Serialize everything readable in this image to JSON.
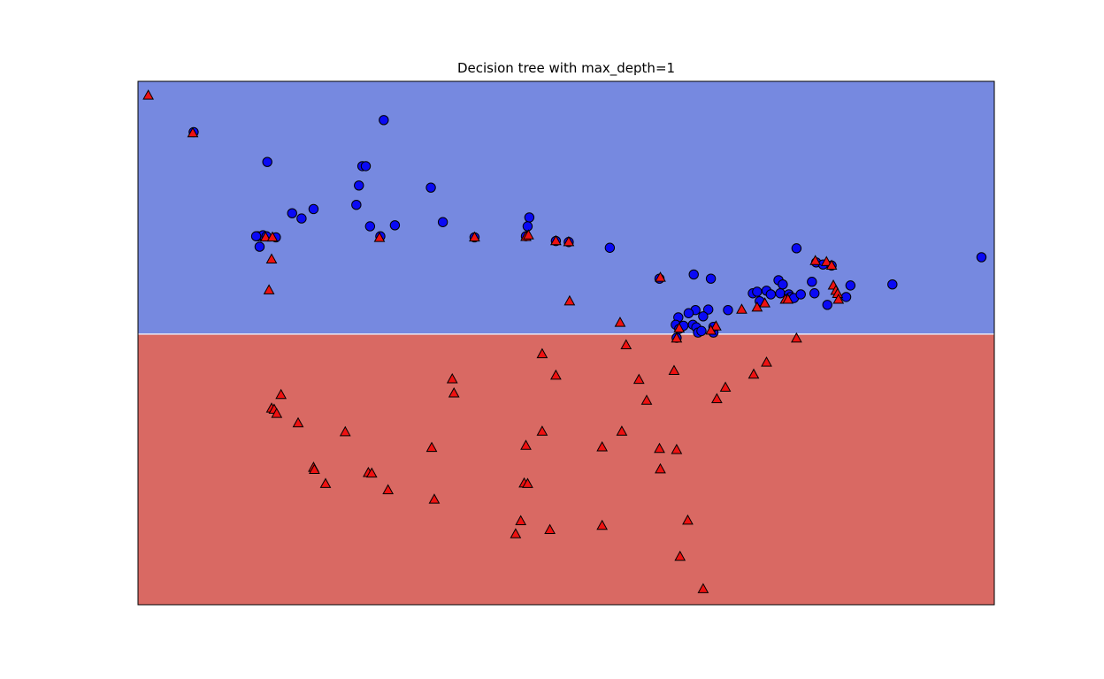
{
  "chart_data": {
    "type": "scatter",
    "title": "Decision tree with max_depth=1",
    "xlabel": "",
    "ylabel": "",
    "xlim": [
      0,
      100
    ],
    "ylim": [
      0,
      100
    ],
    "xticks": false,
    "yticks": false,
    "grid": false,
    "legend": "none",
    "regions": [
      {
        "class": "blue",
        "y_range": [
          51.7,
          100
        ],
        "color": "#7689e0"
      },
      {
        "class": "red",
        "y_range": [
          0,
          51.7
        ],
        "color": "#d96963"
      }
    ],
    "decision_boundary_y": 51.7,
    "series": [
      {
        "marker": "circle",
        "color": "#0a0af5",
        "points": [
          [
            6.5,
            90.3
          ],
          [
            28.7,
            92.6
          ],
          [
            15.1,
            84.6
          ],
          [
            26.2,
            83.8
          ],
          [
            26.6,
            83.8
          ],
          [
            25.8,
            80.1
          ],
          [
            34.2,
            79.7
          ],
          [
            25.5,
            76.4
          ],
          [
            20.5,
            75.6
          ],
          [
            18.0,
            74.8
          ],
          [
            19.1,
            73.8
          ],
          [
            30.0,
            72.5
          ],
          [
            35.6,
            73.1
          ],
          [
            27.1,
            72.3
          ],
          [
            45.7,
            74.0
          ],
          [
            14.0,
            70.4
          ],
          [
            14.6,
            70.6
          ],
          [
            15.0,
            70.4
          ],
          [
            16.1,
            70.2
          ],
          [
            13.8,
            70.4
          ],
          [
            14.2,
            68.4
          ],
          [
            28.3,
            70.4
          ],
          [
            39.3,
            70.2
          ],
          [
            45.3,
            70.4
          ],
          [
            45.5,
            72.3
          ],
          [
            48.8,
            69.5
          ],
          [
            50.3,
            69.3
          ],
          [
            55.1,
            68.2
          ],
          [
            76.9,
            68.1
          ],
          [
            79.2,
            65.4
          ],
          [
            80.0,
            65.0
          ],
          [
            81.0,
            64.8
          ],
          [
            83.2,
            61.0
          ],
          [
            88.1,
            61.2
          ],
          [
            98.5,
            66.4
          ],
          [
            60.9,
            62.3
          ],
          [
            64.9,
            63.1
          ],
          [
            66.9,
            62.3
          ],
          [
            71.8,
            59.5
          ],
          [
            72.3,
            59.8
          ],
          [
            73.4,
            60.0
          ],
          [
            73.9,
            59.3
          ],
          [
            74.8,
            62.0
          ],
          [
            75.3,
            61.2
          ],
          [
            75.0,
            59.5
          ],
          [
            76.0,
            59.3
          ],
          [
            76.2,
            58.8
          ],
          [
            76.6,
            58.6
          ],
          [
            78.7,
            61.7
          ],
          [
            77.4,
            59.3
          ],
          [
            79.0,
            59.5
          ],
          [
            80.5,
            57.3
          ],
          [
            82.7,
            58.8
          ],
          [
            68.9,
            56.3
          ],
          [
            66.6,
            56.4
          ],
          [
            63.1,
            54.9
          ],
          [
            65.1,
            56.3
          ],
          [
            64.3,
            55.7
          ],
          [
            66.0,
            55.1
          ],
          [
            62.8,
            53.5
          ],
          [
            63.2,
            52.7
          ],
          [
            63.7,
            53.3
          ],
          [
            64.8,
            53.5
          ],
          [
            65.2,
            53.0
          ],
          [
            65.4,
            52.0
          ],
          [
            65.8,
            52.3
          ],
          [
            67.2,
            52.0
          ],
          [
            67.2,
            53.1
          ],
          [
            72.6,
            58.0
          ],
          [
            62.9,
            51.0
          ]
        ]
      },
      {
        "marker": "triangle",
        "color": "#ee1111",
        "points": [
          [
            1.2,
            97.3
          ],
          [
            6.4,
            90.1
          ],
          [
            14.9,
            70.2
          ],
          [
            15.7,
            70.2
          ],
          [
            15.6,
            66.0
          ],
          [
            15.3,
            60.1
          ],
          [
            28.2,
            70.1
          ],
          [
            39.3,
            70.2
          ],
          [
            45.3,
            70.3
          ],
          [
            45.6,
            70.6
          ],
          [
            48.8,
            69.5
          ],
          [
            50.3,
            69.3
          ],
          [
            50.4,
            58.0
          ],
          [
            61.0,
            62.5
          ],
          [
            79.1,
            65.7
          ],
          [
            80.4,
            65.5
          ],
          [
            81.0,
            64.8
          ],
          [
            81.2,
            61.0
          ],
          [
            81.5,
            60.0
          ],
          [
            81.7,
            59.4
          ],
          [
            81.8,
            58.3
          ],
          [
            75.6,
            58.3
          ],
          [
            75.9,
            58.3
          ],
          [
            73.2,
            57.6
          ],
          [
            72.3,
            56.8
          ],
          [
            70.5,
            56.4
          ],
          [
            67.5,
            53.2
          ],
          [
            66.9,
            52.4
          ],
          [
            63.2,
            52.8
          ],
          [
            62.9,
            50.9
          ],
          [
            56.3,
            53.9
          ],
          [
            57.0,
            49.6
          ],
          [
            76.9,
            50.9
          ],
          [
            47.2,
            47.9
          ],
          [
            73.4,
            46.3
          ],
          [
            71.9,
            44.0
          ],
          [
            68.6,
            41.5
          ],
          [
            67.6,
            39.3
          ],
          [
            36.7,
            43.1
          ],
          [
            36.9,
            40.4
          ],
          [
            16.7,
            40.1
          ],
          [
            15.6,
            37.5
          ],
          [
            15.9,
            37.3
          ],
          [
            16.2,
            36.5
          ],
          [
            18.7,
            34.7
          ],
          [
            24.2,
            33.0
          ],
          [
            48.8,
            43.8
          ],
          [
            58.5,
            43.0
          ],
          [
            62.6,
            44.7
          ],
          [
            59.4,
            39.0
          ],
          [
            56.5,
            33.1
          ],
          [
            47.2,
            33.1
          ],
          [
            45.3,
            30.4
          ],
          [
            34.3,
            30.0
          ],
          [
            20.5,
            26.2
          ],
          [
            20.6,
            25.8
          ],
          [
            26.9,
            25.2
          ],
          [
            27.3,
            25.1
          ],
          [
            21.9,
            23.1
          ],
          [
            29.2,
            21.9
          ],
          [
            45.1,
            23.2
          ],
          [
            45.5,
            23.1
          ],
          [
            54.2,
            30.1
          ],
          [
            61.0,
            25.9
          ],
          [
            62.9,
            29.6
          ],
          [
            34.6,
            20.1
          ],
          [
            44.7,
            16.0
          ],
          [
            44.1,
            13.5
          ],
          [
            48.1,
            14.3
          ],
          [
            54.2,
            15.1
          ],
          [
            64.2,
            16.1
          ],
          [
            63.3,
            9.2
          ],
          [
            66.0,
            3.0
          ],
          [
            60.9,
            29.8
          ]
        ]
      }
    ]
  }
}
